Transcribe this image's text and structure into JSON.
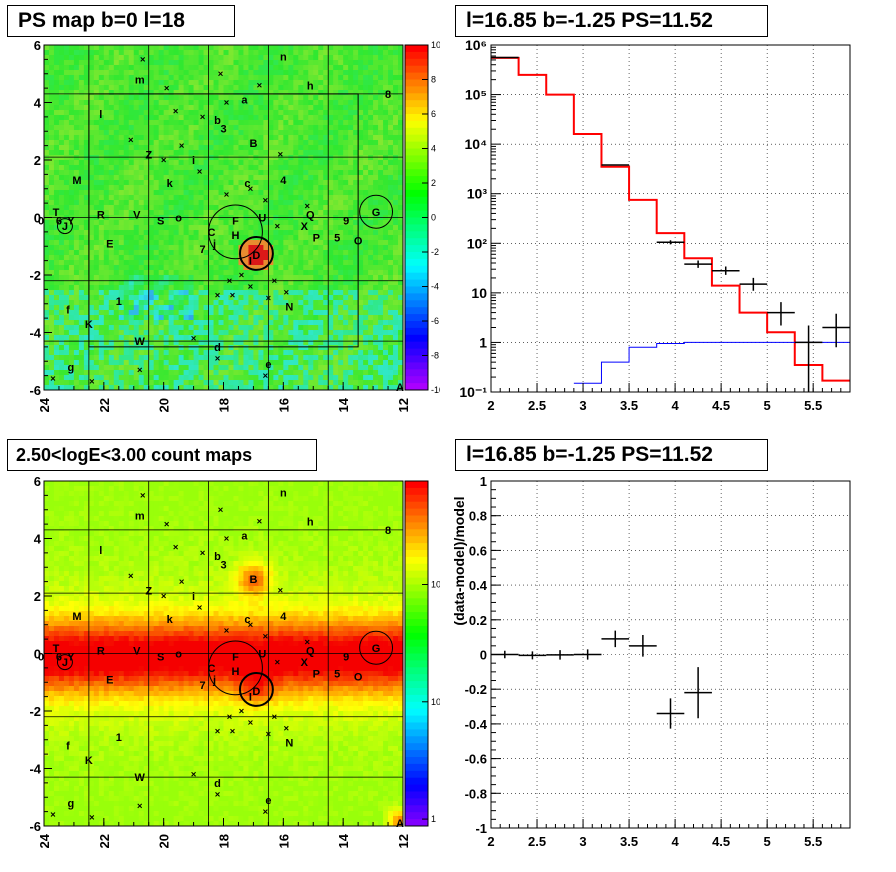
{
  "titles": {
    "top_left": "PS map b=0 l=18",
    "top_right": "l=16.85 b=-1.25 PS=11.52",
    "bottom_left": "2.50<logE<3.00 count maps",
    "bottom_right": "l=16.85 b=-1.25 PS=11.52"
  },
  "maps": {
    "x_ticks": [
      "24",
      "22",
      "20",
      "18",
      "16",
      "14",
      "12"
    ],
    "y_ticks": [
      "6",
      "4",
      "2",
      "0",
      "-2",
      "-4",
      "-6"
    ],
    "xlim": [
      24,
      12
    ],
    "ylim": [
      -6,
      6
    ],
    "top_colorbar_ticks": [
      "10",
      "8",
      "6",
      "4",
      "2",
      "0",
      "-2",
      "-4",
      "-6",
      "-8",
      "-10"
    ],
    "top_colorbar_range": [
      -10,
      10
    ],
    "bottom_colorbar_ticks": [
      "10²",
      "10",
      "1"
    ],
    "source_labels": [
      {
        "t": "n",
        "l": 16.0,
        "b": 5.6
      },
      {
        "t": "m",
        "l": 20.8,
        "b": 4.8
      },
      {
        "t": "h",
        "l": 15.1,
        "b": 4.6
      },
      {
        "t": "8",
        "l": 12.5,
        "b": 4.3
      },
      {
        "t": "a",
        "l": 17.3,
        "b": 4.1
      },
      {
        "t": "l",
        "l": 22.1,
        "b": 3.6
      },
      {
        "t": "b",
        "l": 18.2,
        "b": 3.4
      },
      {
        "t": "3",
        "l": 18.0,
        "b": 3.1
      },
      {
        "t": "B",
        "l": 17.0,
        "b": 2.6
      },
      {
        "t": "Z",
        "l": 20.5,
        "b": 2.2
      },
      {
        "t": "i",
        "l": 19.0,
        "b": 2.0
      },
      {
        "t": "M",
        "l": 22.9,
        "b": 1.3
      },
      {
        "t": "k",
        "l": 19.8,
        "b": 1.2
      },
      {
        "t": "c",
        "l": 17.2,
        "b": 1.2
      },
      {
        "t": "4",
        "l": 16.0,
        "b": 1.3
      },
      {
        "t": "T",
        "l": 23.6,
        "b": 0.2
      },
      {
        "t": "Y",
        "l": 23.1,
        "b": -0.1
      },
      {
        "t": "R",
        "l": 22.1,
        "b": 0.1
      },
      {
        "t": "V",
        "l": 20.9,
        "b": 0.1
      },
      {
        "t": "S",
        "l": 20.1,
        "b": -0.1
      },
      {
        "t": "o",
        "l": 19.5,
        "b": 0.0
      },
      {
        "t": "F",
        "l": 17.6,
        "b": -0.1
      },
      {
        "t": "U",
        "l": 16.7,
        "b": 0.0
      },
      {
        "t": "Q",
        "l": 15.1,
        "b": 0.1
      },
      {
        "t": "X",
        "l": 15.3,
        "b": -0.3
      },
      {
        "t": "9",
        "l": 13.9,
        "b": -0.1
      },
      {
        "t": "G",
        "l": 12.9,
        "b": 0.2
      },
      {
        "t": "C",
        "l": 18.4,
        "b": -0.5
      },
      {
        "t": "H",
        "l": 17.6,
        "b": -0.6
      },
      {
        "t": "P",
        "l": 14.9,
        "b": -0.7
      },
      {
        "t": "5",
        "l": 14.2,
        "b": -0.7
      },
      {
        "t": "O",
        "l": 13.5,
        "b": -0.8
      },
      {
        "t": "E",
        "l": 21.8,
        "b": -0.9
      },
      {
        "t": "j",
        "l": 18.3,
        "b": -0.9
      },
      {
        "t": "7",
        "l": 18.7,
        "b": -1.1
      },
      {
        "t": "D",
        "l": 16.9,
        "b": -1.3
      },
      {
        "t": "I",
        "l": 17.1,
        "b": -1.5
      },
      {
        "t": "N",
        "l": 15.8,
        "b": -3.1
      },
      {
        "t": "f",
        "l": 23.2,
        "b": -3.2
      },
      {
        "t": "1",
        "l": 21.5,
        "b": -2.9
      },
      {
        "t": "K",
        "l": 22.5,
        "b": -3.7
      },
      {
        "t": "W",
        "l": 20.8,
        "b": -4.3
      },
      {
        "t": "d",
        "l": 18.2,
        "b": -4.5
      },
      {
        "t": "e",
        "l": 16.5,
        "b": -5.1
      },
      {
        "t": "g",
        "l": 23.1,
        "b": -5.2
      },
      {
        "t": "A",
        "l": 12.1,
        "b": -5.9
      },
      {
        "t": "6",
        "l": 23.5,
        "b": -0.1
      },
      {
        "t": "J",
        "l": 23.3,
        "b": -0.3
      },
      {
        "t": "0",
        "l": 24.1,
        "b": -0.1
      }
    ],
    "circles": [
      {
        "l": 17.6,
        "b": -0.5,
        "r": 0.9,
        "w": 1
      },
      {
        "l": 16.9,
        "b": -1.25,
        "r": 0.55,
        "w": 2
      },
      {
        "l": 12.9,
        "b": 0.2,
        "r": 0.55,
        "w": 1
      },
      {
        "l": 23.3,
        "b": -0.3,
        "r": 0.25,
        "w": 1
      }
    ],
    "crosses": [
      {
        "l": 20.7,
        "b": 5.5
      },
      {
        "l": 18.1,
        "b": 5.0
      },
      {
        "l": 19.9,
        "b": 4.5
      },
      {
        "l": 17.9,
        "b": 4.0
      },
      {
        "l": 16.8,
        "b": 4.6
      },
      {
        "l": 19.6,
        "b": 3.7
      },
      {
        "l": 18.7,
        "b": 3.5
      },
      {
        "l": 21.1,
        "b": 2.7
      },
      {
        "l": 19.4,
        "b": 2.5
      },
      {
        "l": 16.1,
        "b": 2.2
      },
      {
        "l": 20.0,
        "b": 2.0
      },
      {
        "l": 18.8,
        "b": 1.6
      },
      {
        "l": 17.1,
        "b": 1.0
      },
      {
        "l": 16.6,
        "b": 0.6
      },
      {
        "l": 15.2,
        "b": 0.4
      },
      {
        "l": 17.9,
        "b": 0.8
      },
      {
        "l": 16.2,
        "b": -0.3
      },
      {
        "l": 18.2,
        "b": -2.7
      },
      {
        "l": 17.8,
        "b": -2.2
      },
      {
        "l": 17.4,
        "b": -2.0
      },
      {
        "l": 17.1,
        "b": -2.4
      },
      {
        "l": 16.5,
        "b": -2.8
      },
      {
        "l": 16.3,
        "b": -2.2
      },
      {
        "l": 17.7,
        "b": -2.7
      },
      {
        "l": 15.9,
        "b": -2.6
      },
      {
        "l": 19.0,
        "b": -4.2
      },
      {
        "l": 18.2,
        "b": -4.9
      },
      {
        "l": 16.6,
        "b": -5.5
      },
      {
        "l": 20.8,
        "b": -5.3
      },
      {
        "l": 22.4,
        "b": -5.7
      },
      {
        "l": 23.7,
        "b": -5.6
      }
    ]
  },
  "chart_data": [
    {
      "type": "heatmap",
      "title": "PS map b=0 l=18",
      "xlabel": "",
      "ylabel": "",
      "xlim": [
        24,
        12
      ],
      "ylim": [
        -6,
        6
      ],
      "colorbar_range": [
        -10,
        10
      ],
      "colorscale": "rainbow",
      "hotspot": {
        "l": 16.9,
        "b": -1.3,
        "value": 10
      }
    },
    {
      "type": "line",
      "title": "l=16.85 b=-1.25 PS=11.52",
      "x_scale": "linear",
      "y_scale": "log",
      "xlim": [
        2,
        5.9
      ],
      "ylim": [
        0.1,
        1000000
      ],
      "x_ticks": [
        2,
        2.5,
        3,
        3.5,
        4,
        4.5,
        5,
        5.5
      ],
      "y_tick_labels": [
        "10⁻¹",
        "1",
        "10",
        "10²",
        "10³",
        "10⁴",
        "10⁵",
        "10⁶"
      ],
      "grid": true,
      "series": [
        {
          "color": "#ff0000",
          "kind": "step",
          "edges": [
            2.0,
            2.3,
            2.6,
            2.9,
            3.2,
            3.5,
            3.8,
            4.1,
            4.4,
            4.7,
            5.0,
            5.3,
            5.6,
            5.9
          ],
          "values": [
            550000,
            250000,
            100000,
            16000,
            3500,
            750,
            160,
            50,
            14,
            4,
            1.6,
            0.35,
            0.17
          ]
        },
        {
          "color": "#0000ff",
          "kind": "step",
          "edges": [
            2.9,
            3.2,
            3.5,
            3.8,
            4.1,
            4.4,
            4.7,
            5.0,
            5.3,
            5.6,
            5.9
          ],
          "values": [
            0.15,
            0.4,
            0.8,
            0.95,
            1.0,
            1.0,
            1.0,
            1.0,
            1.0,
            1.0
          ]
        },
        {
          "color": "#000000",
          "kind": "errorbar",
          "points": [
            {
              "x": 2.15,
              "y": 560000,
              "xerr": 0.15,
              "ylo": 558000,
              "yhi": 562000
            },
            {
              "x": 3.35,
              "y": 3800,
              "xerr": 0.15,
              "ylo": 3700,
              "yhi": 3900
            },
            {
              "x": 3.95,
              "y": 105,
              "xerr": 0.15,
              "ylo": 95,
              "yhi": 115
            },
            {
              "x": 4.25,
              "y": 38,
              "xerr": 0.15,
              "ylo": 32,
              "yhi": 45
            },
            {
              "x": 4.55,
              "y": 28,
              "xerr": 0.15,
              "ylo": 23,
              "yhi": 34
            },
            {
              "x": 4.85,
              "y": 15,
              "xerr": 0.15,
              "ylo": 11,
              "yhi": 20
            },
            {
              "x": 5.15,
              "y": 4,
              "xerr": 0.15,
              "ylo": 2.2,
              "yhi": 6.5
            },
            {
              "x": 5.45,
              "y": 1,
              "xerr": 0.15,
              "ylo": 0.1,
              "yhi": 2.2
            },
            {
              "x": 5.75,
              "y": 2,
              "xerr": 0.15,
              "ylo": 0.8,
              "yhi": 3.8
            }
          ]
        }
      ]
    },
    {
      "type": "heatmap",
      "title": "2.50<logE<3.00 count maps",
      "xlabel": "",
      "ylabel": "",
      "xlim": [
        24,
        12
      ],
      "ylim": [
        -6,
        6
      ],
      "colorbar_scale": "log",
      "colorbar_tick_labels": [
        "10²",
        "10",
        "1"
      ]
    },
    {
      "type": "scatter",
      "title": "l=16.85 b=-1.25 PS=11.52",
      "xlabel": "",
      "ylabel": "(data-model)/model",
      "xlim": [
        2,
        5.9
      ],
      "ylim": [
        -1,
        1
      ],
      "x_ticks": [
        2,
        2.5,
        3,
        3.5,
        4,
        4.5,
        5,
        5.5
      ],
      "y_ticks": [
        -1,
        -0.8,
        -0.6,
        -0.4,
        -0.2,
        0,
        0.2,
        0.4,
        0.6,
        0.8,
        1
      ],
      "grid": true,
      "points": [
        {
          "x": 2.15,
          "y": 0.0,
          "xerr": 0.15,
          "yerr": 0.004
        },
        {
          "x": 2.45,
          "y": -0.005,
          "xerr": 0.15,
          "yerr": 0.006
        },
        {
          "x": 2.75,
          "y": -0.002,
          "xerr": 0.15,
          "yerr": 0.01
        },
        {
          "x": 3.05,
          "y": 0.0,
          "xerr": 0.15,
          "yerr": 0.012
        },
        {
          "x": 3.35,
          "y": 0.09,
          "xerr": 0.15,
          "yerr": 0.03
        },
        {
          "x": 3.65,
          "y": 0.05,
          "xerr": 0.15,
          "yerr": 0.045
        },
        {
          "x": 3.95,
          "y": -0.34,
          "xerr": 0.15,
          "yerr": 0.07
        },
        {
          "x": 4.25,
          "y": -0.22,
          "xerr": 0.15,
          "yerr": 0.13
        }
      ]
    }
  ]
}
